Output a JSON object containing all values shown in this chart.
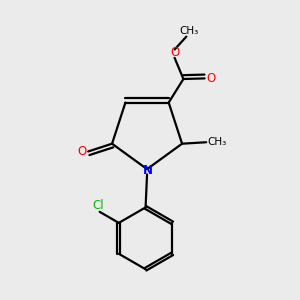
{
  "bg_color": "#ebebeb",
  "bond_color": "#000000",
  "bond_width": 1.6,
  "atom_colors": {
    "N": "#0000ff",
    "O": "#ff0000",
    "Cl": "#00bb00",
    "C": "#000000"
  },
  "font_size_atom": 8.5,
  "font_size_me": 7.5
}
